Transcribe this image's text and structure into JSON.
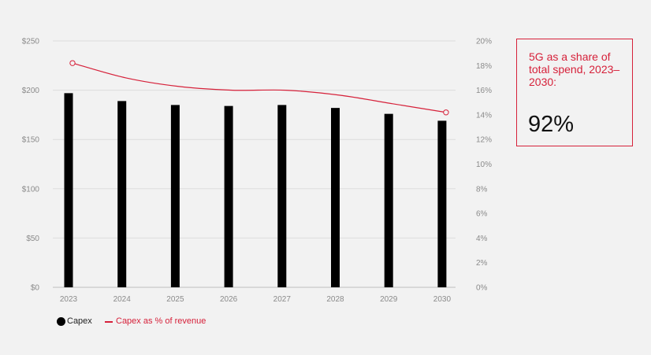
{
  "chart_data": {
    "type": "bar",
    "categories": [
      "2023",
      "2024",
      "2025",
      "2026",
      "2027",
      "2028",
      "2029",
      "2030"
    ],
    "series": [
      {
        "name": "Capex",
        "type": "bar",
        "axis": "left",
        "color": "#000000",
        "values": [
          197,
          189,
          185,
          184,
          185,
          182,
          176,
          169
        ]
      },
      {
        "name": "Capex as % of revenue",
        "type": "line",
        "axis": "right",
        "color": "#d6213a",
        "values": [
          18.2,
          17.0,
          16.3,
          16.0,
          16.0,
          15.6,
          14.9,
          14.2
        ]
      }
    ],
    "y_left": {
      "ylim": [
        0,
        250
      ],
      "ticks": [
        0,
        50,
        100,
        150,
        200,
        250
      ],
      "tick_labels": [
        "$0",
        "$50",
        "$100",
        "$150",
        "$200",
        "$250"
      ]
    },
    "y_right": {
      "ylim": [
        0,
        20
      ],
      "ticks": [
        0,
        2,
        4,
        6,
        8,
        10,
        12,
        14,
        16,
        18,
        20
      ],
      "tick_labels": [
        "0%",
        "2%",
        "4%",
        "6%",
        "8%",
        "10%",
        "12%",
        "14%",
        "16%",
        "18%",
        "20%"
      ]
    },
    "title": "",
    "xlabel": "",
    "ylabel": "",
    "grid": true,
    "legend_position": "bottom-left",
    "line_markers": "first and last points"
  },
  "legend": {
    "capex_label": "Capex",
    "pct_label": "Capex as % of revenue"
  },
  "callout": {
    "text": "5G as a share of total spend, 2023–2030:",
    "value": "92%"
  },
  "colors": {
    "accent": "#d6213a",
    "bar": "#000000",
    "background": "#f2f2f2",
    "grid": "#dcdcdc"
  }
}
